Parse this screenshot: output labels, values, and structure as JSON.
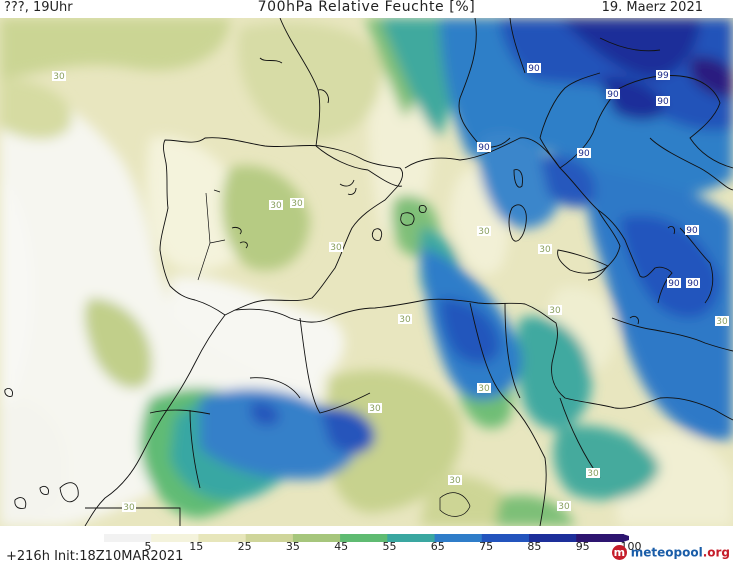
{
  "header": {
    "run_label": "???, 19Uhr",
    "title": "700hPa Relative Feuchte [%]",
    "date": "19. Maerz 2021"
  },
  "footer": {
    "forecast_info": "+216h  Init:18Z10MAR2021",
    "logo_mark": "m",
    "logo_text": "meteopool",
    "logo_suffix": ".org"
  },
  "colorbar": {
    "tick_labels": [
      "5",
      "15",
      "25",
      "35",
      "45",
      "55",
      "65",
      "75",
      "85",
      "95",
      "100"
    ],
    "colors": [
      "#f2f2f2",
      "#f4f3dc",
      "#e7e6bb",
      "#cfd59a",
      "#a6c67c",
      "#5fbb72",
      "#3aa7a1",
      "#2f7dc9",
      "#2354bd",
      "#1d2f9a",
      "#2d1570"
    ]
  },
  "contour_labels": [
    "30",
    "30",
    "30",
    "30",
    "30",
    "30",
    "30",
    "30",
    "30",
    "30",
    "30",
    "30",
    "30",
    "30",
    "90",
    "90",
    "90",
    "90",
    "90",
    "90",
    "90",
    "90",
    "99"
  ]
}
